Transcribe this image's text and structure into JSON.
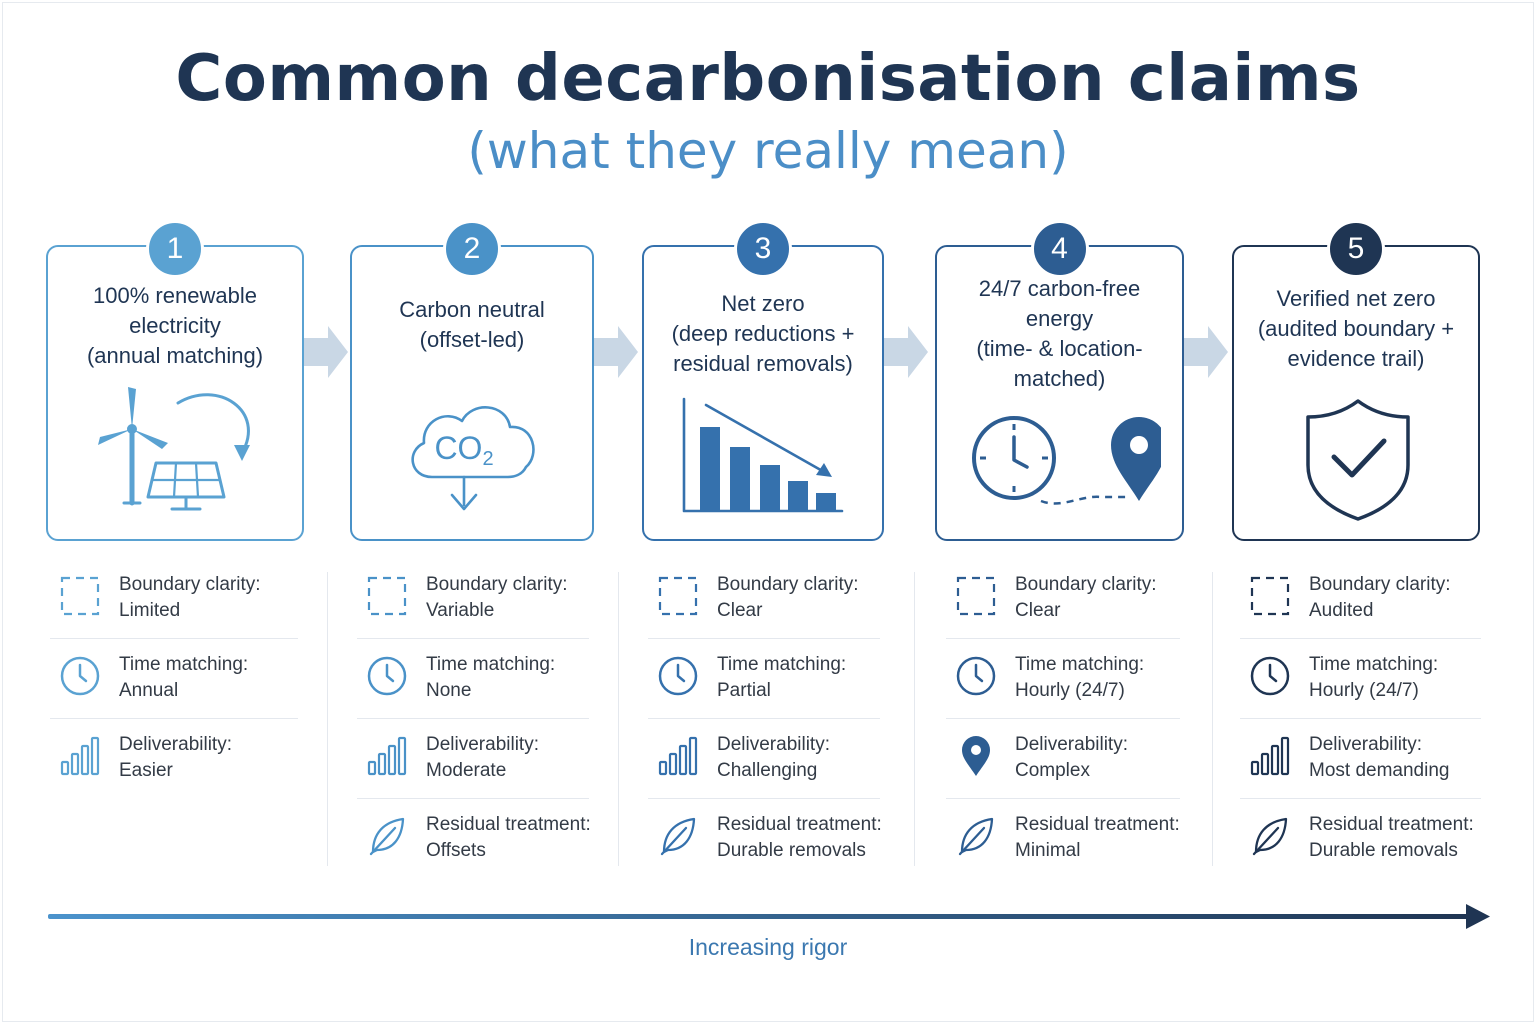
{
  "header": {
    "title": "Common  decarbonisation claims",
    "subtitle": "(what they really mean)"
  },
  "colors": {
    "c1": "#5aa2d2",
    "c2": "#4a92c8",
    "c3": "#3571ad",
    "c4": "#2d5d92",
    "c5": "#1f3553",
    "flow_arrow": "#c9d7e5",
    "text": "#333b46"
  },
  "claims": [
    {
      "number": "1",
      "title_lines": [
        "100% renewable",
        "electricity",
        "(annual matching)"
      ],
      "illustration": "wind-solar-icon",
      "rows": [
        {
          "icon": "boundary-icon",
          "label": "Boundary clarity:",
          "value": "Limited"
        },
        {
          "icon": "clock-icon",
          "label": "Time matching:",
          "value": "Annual"
        },
        {
          "icon": "bars-icon",
          "label": "Deliverability:",
          "value": "Easier"
        }
      ]
    },
    {
      "number": "2",
      "title_lines": [
        "Carbon neutral",
        "(offset-led)"
      ],
      "illustration": "co2-cloud-icon",
      "cloud_text": "CO",
      "cloud_sub": "2",
      "rows": [
        {
          "icon": "boundary-icon",
          "label": "Boundary clarity:",
          "value": "Variable"
        },
        {
          "icon": "clock-icon",
          "label": "Time matching:",
          "value": "None"
        },
        {
          "icon": "bars-icon",
          "label": "Deliverability:",
          "value": "Moderate"
        },
        {
          "icon": "leaf-icon",
          "label": "Residual treatment:",
          "value": "Offsets"
        }
      ]
    },
    {
      "number": "3",
      "title_lines": [
        "Net zero",
        "(deep reductions +",
        "residual removals)"
      ],
      "illustration": "declining-bars-icon",
      "rows": [
        {
          "icon": "boundary-icon",
          "label": "Boundary clarity:",
          "value": "Clear"
        },
        {
          "icon": "clock-icon",
          "label": "Time matching:",
          "value": "Partial"
        },
        {
          "icon": "bars-icon",
          "label": "Deliverability:",
          "value": "Challenging"
        },
        {
          "icon": "leaf-icon",
          "label": "Residual treatment:",
          "value": "Durable removals"
        }
      ]
    },
    {
      "number": "4",
      "title_lines": [
        "24/7 carbon-free",
        "energy",
        "(time- & location-",
        "matched)"
      ],
      "illustration": "clock-pin-icon",
      "rows": [
        {
          "icon": "boundary-icon",
          "label": "Boundary clarity:",
          "value": "Clear"
        },
        {
          "icon": "clock-icon",
          "label": "Time matching:",
          "value": "Hourly (24/7)"
        },
        {
          "icon": "pin-icon",
          "label": "Deliverability:",
          "value": "Complex"
        },
        {
          "icon": "leaf-icon",
          "label": "Residual treatment:",
          "value": "Minimal"
        }
      ]
    },
    {
      "number": "5",
      "title_lines": [
        "Verified net zero",
        "(audited boundary +",
        "evidence trail)"
      ],
      "illustration": "shield-check-icon",
      "rows": [
        {
          "icon": "boundary-icon",
          "label": "Boundary clarity:",
          "value": "Audited"
        },
        {
          "icon": "clock-icon",
          "label": "Time matching:",
          "value": "Hourly (24/7)"
        },
        {
          "icon": "bars-icon",
          "label": "Deliverability:",
          "value": "Most demanding"
        },
        {
          "icon": "leaf-icon",
          "label": "Residual treatment:",
          "value": "Durable removals"
        }
      ]
    }
  ],
  "footer": {
    "rigor_label": "Increasing rigor"
  }
}
